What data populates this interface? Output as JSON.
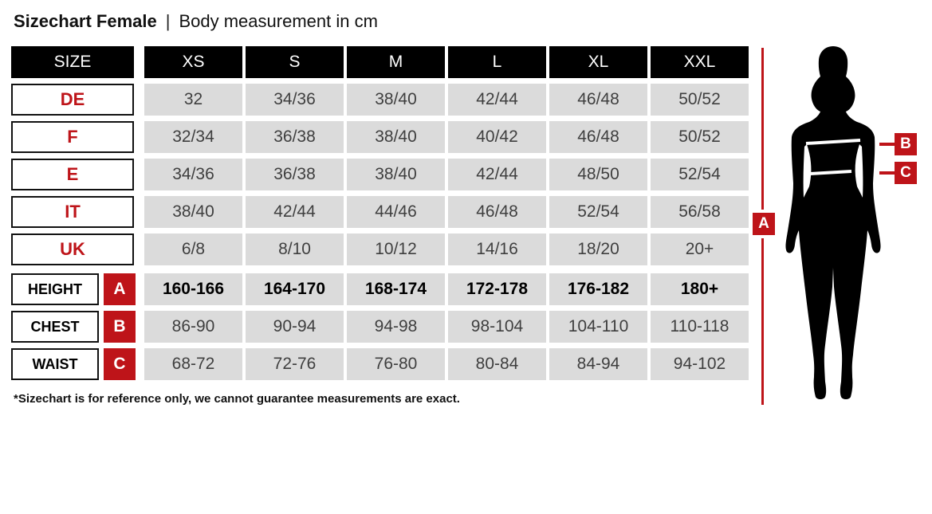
{
  "header": {
    "title": "Sizechart Female",
    "separator": "|",
    "subtitle": "Body measurement in cm"
  },
  "footnote": "*Sizechart is for reference only, we cannot guarantee measurements are exact.",
  "colors": {
    "red": "#BE1419",
    "black": "#000000",
    "cell_bg": "#DBDBDB",
    "cell_text": "#3F3F3F"
  },
  "table": {
    "header": [
      "SIZE",
      "XS",
      "S",
      "M",
      "L",
      "XL",
      "XXL"
    ],
    "size_rows": [
      {
        "label": "DE",
        "values": [
          "32",
          "34/36",
          "38/40",
          "42/44",
          "46/48",
          "50/52"
        ]
      },
      {
        "label": "F",
        "values": [
          "32/34",
          "36/38",
          "38/40",
          "40/42",
          "46/48",
          "50/52"
        ]
      },
      {
        "label": "E",
        "values": [
          "34/36",
          "36/38",
          "38/40",
          "42/44",
          "48/50",
          "52/54"
        ]
      },
      {
        "label": "IT",
        "values": [
          "38/40",
          "42/44",
          "44/46",
          "46/48",
          "52/54",
          "56/58"
        ]
      },
      {
        "label": "UK",
        "values": [
          "6/8",
          "8/10",
          "10/12",
          "14/16",
          "18/20",
          "20+"
        ]
      }
    ],
    "measure_rows": [
      {
        "label": "HEIGHT",
        "badge": "A",
        "bold": true,
        "values": [
          "160-166",
          "164-170",
          "168-174",
          "172-178",
          "176-182",
          "180+"
        ]
      },
      {
        "label": "CHEST",
        "badge": "B",
        "bold": false,
        "values": [
          "86-90",
          "90-94",
          "94-98",
          "98-104",
          "104-110",
          "110-118"
        ]
      },
      {
        "label": "WAIST",
        "badge": "C",
        "bold": false,
        "values": [
          "68-72",
          "72-76",
          "76-80",
          "80-84",
          "84-94",
          "94-102"
        ]
      }
    ]
  },
  "figure": {
    "markers": {
      "height": "A",
      "chest": "B",
      "waist": "C"
    }
  }
}
